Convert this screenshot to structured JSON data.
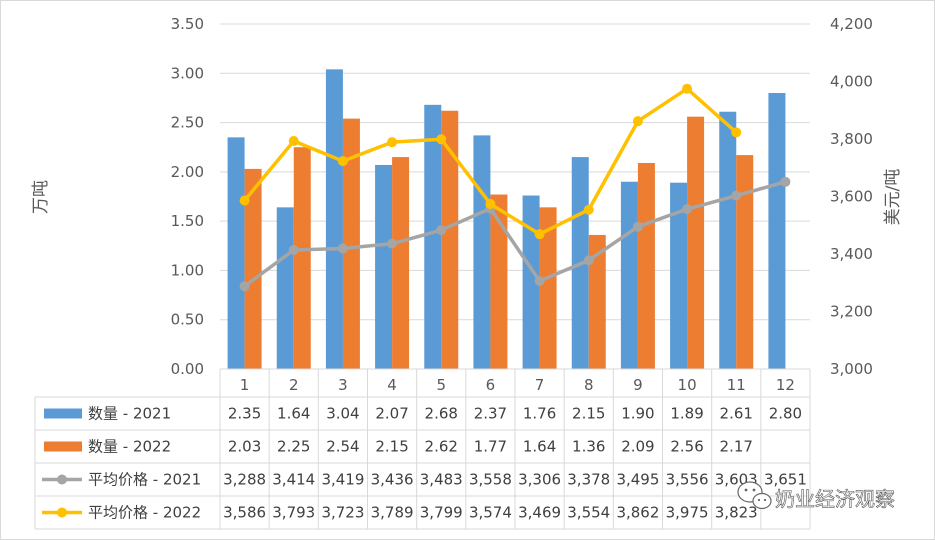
{
  "chart_data": {
    "type": "bar+line",
    "categories": [
      "1",
      "2",
      "3",
      "4",
      "5",
      "6",
      "7",
      "8",
      "9",
      "10",
      "11",
      "12"
    ],
    "bar_series": [
      {
        "name": "数量 - 2021",
        "color": "#5B9BD5",
        "values": [
          2.35,
          1.64,
          3.04,
          2.07,
          2.68,
          2.37,
          1.76,
          2.15,
          1.9,
          1.89,
          2.61,
          2.8
        ],
        "labels": [
          "2.35",
          "1.64",
          "3.04",
          "2.07",
          "2.68",
          "2.37",
          "1.76",
          "2.15",
          "1.90",
          "1.89",
          "2.61",
          "2.80"
        ]
      },
      {
        "name": "数量 - 2022",
        "color": "#ED7D31",
        "values": [
          2.03,
          2.25,
          2.54,
          2.15,
          2.62,
          1.77,
          1.64,
          1.36,
          2.09,
          2.56,
          2.17,
          null
        ],
        "labels": [
          "2.03",
          "2.25",
          "2.54",
          "2.15",
          "2.62",
          "1.77",
          "1.64",
          "1.36",
          "2.09",
          "2.56",
          "2.17",
          ""
        ]
      }
    ],
    "line_series": [
      {
        "name": "平均价格 - 2021",
        "color": "#A5A5A5",
        "values": [
          3288,
          3414,
          3419,
          3436,
          3483,
          3558,
          3306,
          3378,
          3495,
          3556,
          3603,
          3651
        ],
        "labels": [
          "3,288",
          "3,414",
          "3,419",
          "3,436",
          "3,483",
          "3,558",
          "3,306",
          "3,378",
          "3,495",
          "3,556",
          "3,603",
          "3,651"
        ]
      },
      {
        "name": "平均价格 - 2022",
        "color": "#FFC000",
        "values": [
          3586,
          3793,
          3723,
          3789,
          3799,
          3574,
          3469,
          3554,
          3862,
          3975,
          3823,
          null
        ],
        "labels": [
          "3,586",
          "3,793",
          "3,723",
          "3,789",
          "3,799",
          "3,574",
          "3,469",
          "3,554",
          "3,862",
          "3,975",
          "3,823",
          ""
        ]
      }
    ],
    "y_left": {
      "label": "万吨",
      "min": 0,
      "max": 3.5,
      "ticks": [
        "0.00",
        "0.50",
        "1.00",
        "1.50",
        "2.00",
        "2.50",
        "3.00",
        "3.50"
      ]
    },
    "y_right": {
      "label": "美元/吨",
      "min": 3000,
      "max": 4200,
      "ticks": [
        "3,000",
        "3,200",
        "3,400",
        "3,600",
        "3,800",
        "4,000",
        "4,200"
      ]
    },
    "grid": true,
    "legend": "data-table-below"
  },
  "watermark": {
    "text": "奶业经济观察"
  }
}
